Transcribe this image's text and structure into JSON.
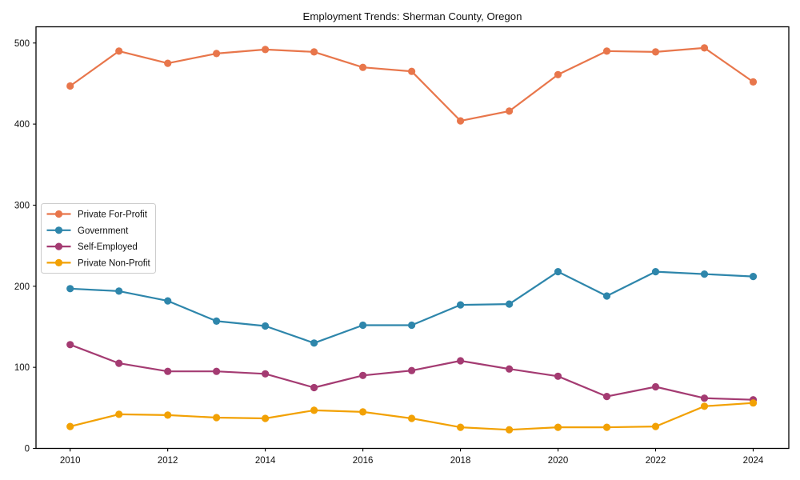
{
  "chart_data": {
    "type": "line",
    "title": "Employment Trends: Sherman County, Oregon",
    "xlabel": "",
    "ylabel": "",
    "x": [
      2010,
      2011,
      2012,
      2013,
      2014,
      2015,
      2016,
      2017,
      2018,
      2019,
      2020,
      2021,
      2022,
      2023,
      2024
    ],
    "x_ticks": [
      2010,
      2012,
      2014,
      2016,
      2018,
      2020,
      2022,
      2024
    ],
    "y_ticks": [
      0,
      100,
      200,
      300,
      400,
      500
    ],
    "xlim": [
      2009.3,
      2024.73
    ],
    "ylim": [
      0,
      520
    ],
    "grid": false,
    "legend_position": "center-left",
    "marker": "circle",
    "series": [
      {
        "name": "Private For-Profit",
        "color": "#E8764B",
        "values": [
          447,
          490,
          475,
          487,
          492,
          489,
          470,
          465,
          404,
          416,
          461,
          490,
          489,
          494,
          452
        ]
      },
      {
        "name": "Government",
        "color": "#2E86AB",
        "values": [
          197,
          194,
          182,
          157,
          151,
          130,
          152,
          152,
          177,
          178,
          218,
          188,
          218,
          215,
          212
        ]
      },
      {
        "name": "Self-Employed",
        "color": "#A43B72",
        "values": [
          128,
          105,
          95,
          95,
          92,
          75,
          90,
          96,
          108,
          98,
          89,
          64,
          76,
          62,
          60
        ]
      },
      {
        "name": "Private Non-Profit",
        "color": "#F2A104",
        "values": [
          27,
          42,
          41,
          38,
          37,
          47,
          45,
          37,
          26,
          23,
          26,
          26,
          27,
          52,
          56
        ]
      }
    ]
  }
}
